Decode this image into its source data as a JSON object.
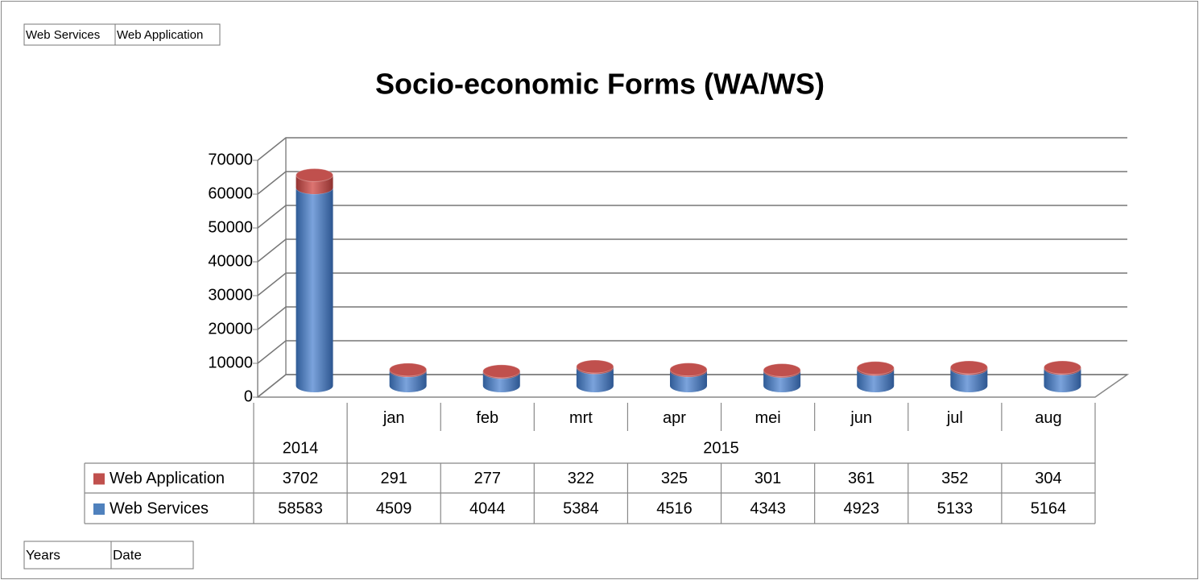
{
  "chart_data": {
    "type": "bar3d_stacked",
    "title": "Socio-economic Forms (WA/WS)",
    "categories": [
      null,
      "jan",
      "feb",
      "mrt",
      "apr",
      "mei",
      "jun",
      "jul",
      "aug"
    ],
    "category_groups": [
      {
        "label": "2014",
        "span": 1
      },
      {
        "label": "2015",
        "span": 8
      }
    ],
    "series": [
      {
        "name": "Web Services",
        "color": "#4f81bd",
        "values": [
          58583,
          4509,
          4044,
          5384,
          4516,
          4343,
          4923,
          5133,
          5164
        ]
      },
      {
        "name": "Web Application",
        "color": "#c0504d",
        "values": [
          3702,
          291,
          277,
          322,
          325,
          301,
          361,
          352,
          304
        ]
      }
    ],
    "ylim": [
      0,
      70000
    ],
    "yticks": [
      0,
      10000,
      20000,
      30000,
      40000,
      50000,
      60000,
      70000
    ],
    "grid": true,
    "field_buttons": {
      "series": [
        "Web Services",
        "Web Application"
      ],
      "axis": [
        "Years",
        "Date"
      ]
    }
  }
}
